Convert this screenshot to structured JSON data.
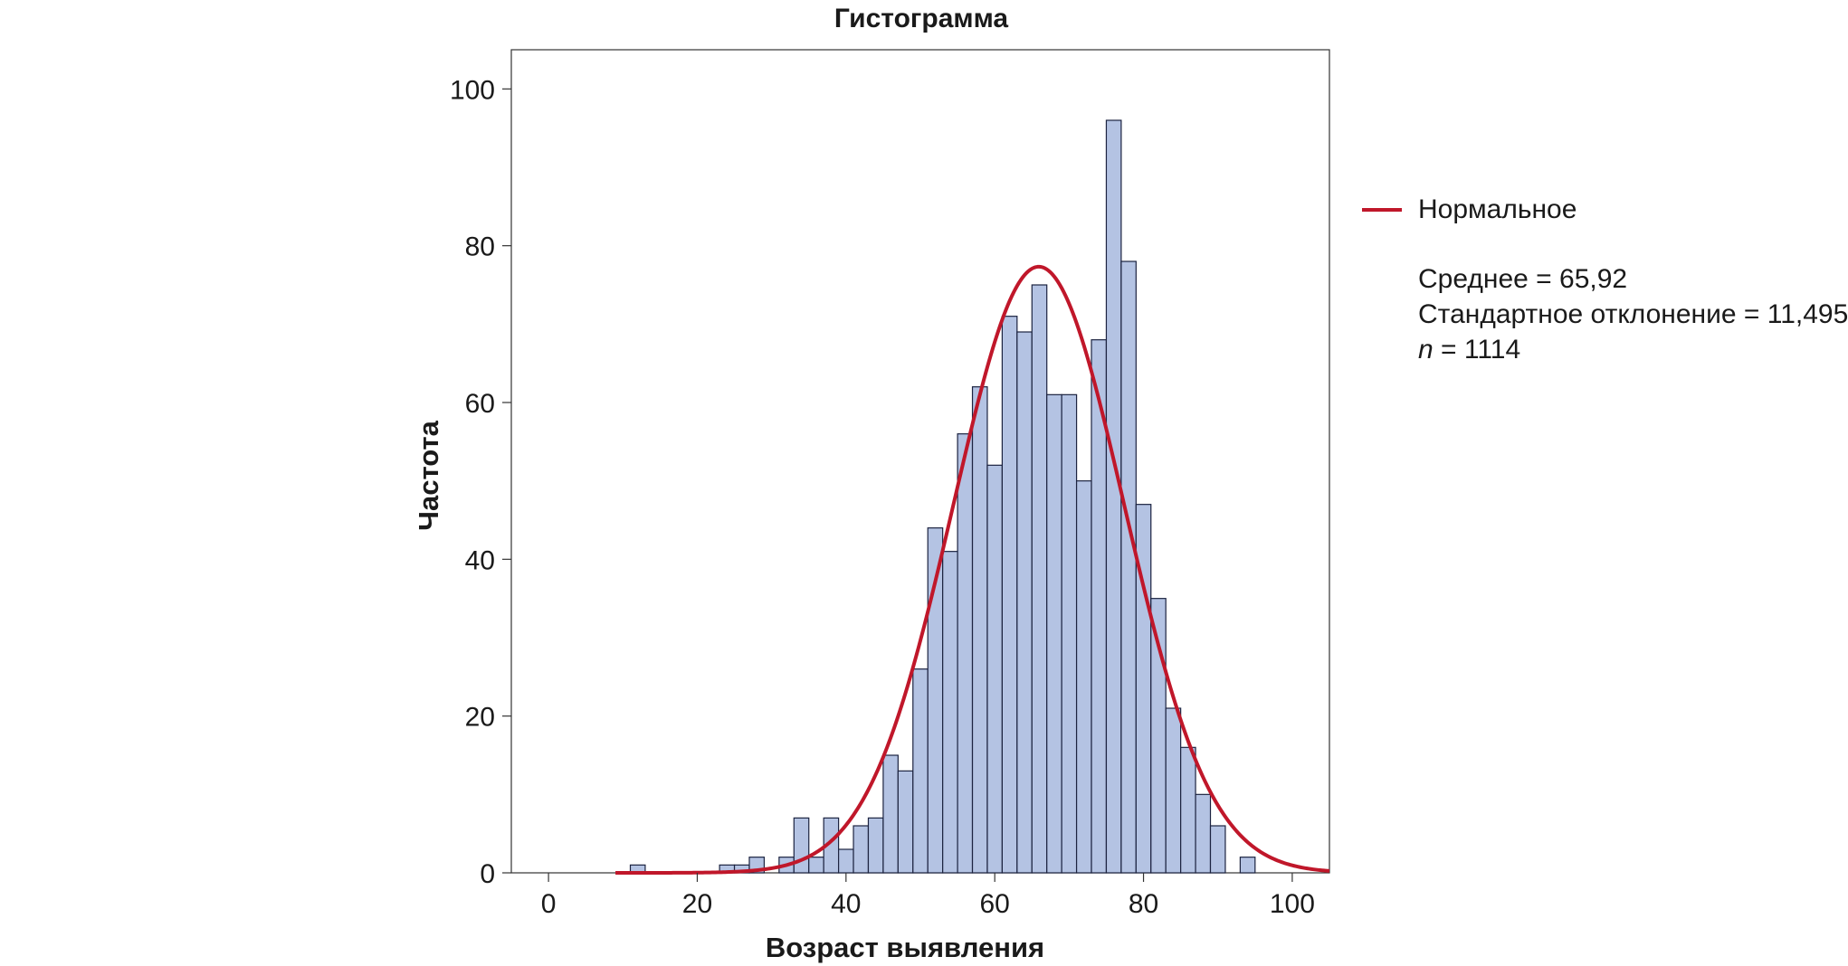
{
  "chart_data": {
    "type": "bar",
    "title": "Гистограмма",
    "xlabel": "Возраст выявления",
    "ylabel": "Частота",
    "xlim": [
      -5,
      105
    ],
    "ylim": [
      0,
      105
    ],
    "x_ticks": [
      0,
      20,
      40,
      60,
      80,
      100
    ],
    "y_ticks": [
      0,
      20,
      40,
      60,
      80,
      100
    ],
    "grid": false,
    "legend_position": "right",
    "bar_color": "#b4c3e3",
    "curve_color": "#c0172a",
    "bin_width": 2,
    "bins": [
      {
        "x": 12,
        "y": 1
      },
      {
        "x": 24,
        "y": 1
      },
      {
        "x": 26,
        "y": 1
      },
      {
        "x": 28,
        "y": 2
      },
      {
        "x": 32,
        "y": 2
      },
      {
        "x": 34,
        "y": 7
      },
      {
        "x": 36,
        "y": 2
      },
      {
        "x": 38,
        "y": 7
      },
      {
        "x": 40,
        "y": 3
      },
      {
        "x": 42,
        "y": 6
      },
      {
        "x": 44,
        "y": 7
      },
      {
        "x": 46,
        "y": 15
      },
      {
        "x": 48,
        "y": 13
      },
      {
        "x": 50,
        "y": 26
      },
      {
        "x": 52,
        "y": 44
      },
      {
        "x": 54,
        "y": 41
      },
      {
        "x": 56,
        "y": 56
      },
      {
        "x": 58,
        "y": 62
      },
      {
        "x": 60,
        "y": 52
      },
      {
        "x": 62,
        "y": 71
      },
      {
        "x": 64,
        "y": 69
      },
      {
        "x": 66,
        "y": 75
      },
      {
        "x": 68,
        "y": 61
      },
      {
        "x": 70,
        "y": 61
      },
      {
        "x": 72,
        "y": 50
      },
      {
        "x": 74,
        "y": 68
      },
      {
        "x": 76,
        "y": 96
      },
      {
        "x": 78,
        "y": 78
      },
      {
        "x": 80,
        "y": 47
      },
      {
        "x": 82,
        "y": 35
      },
      {
        "x": 84,
        "y": 21
      },
      {
        "x": 86,
        "y": 16
      },
      {
        "x": 88,
        "y": 10
      },
      {
        "x": 90,
        "y": 6
      },
      {
        "x": 94,
        "y": 2
      }
    ],
    "normal_curve": {
      "name": "Нормальное",
      "mean": 65.92,
      "std": 11.495,
      "n": 1114,
      "x_range": [
        9,
        105
      ]
    }
  },
  "legend": {
    "series_label": "Нормальное",
    "mean_text": "Среднее = 65,92",
    "std_text": "Стандартное отклонение = 11,495",
    "n_symbol": "n",
    "n_text": " = 1114"
  }
}
